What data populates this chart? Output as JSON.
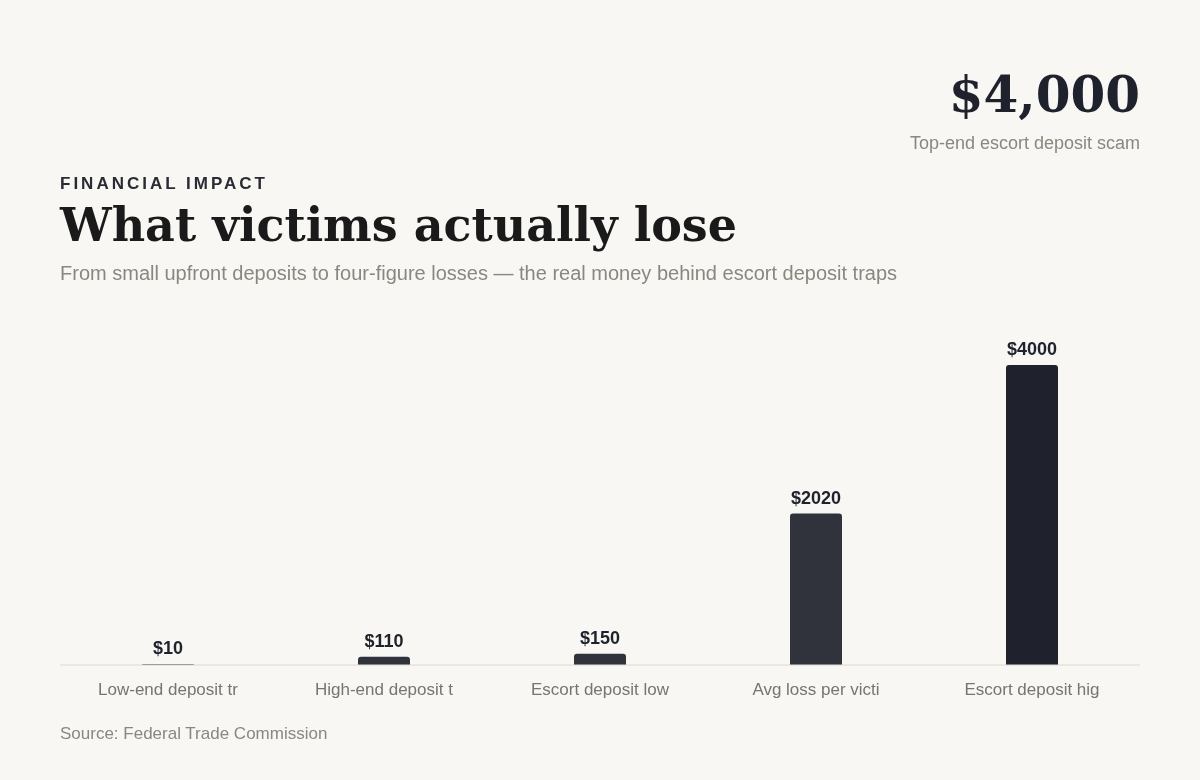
{
  "chart_data": {
    "type": "bar",
    "title": "What victims actually lose",
    "subtitle": "From small upfront deposits to four-figure losses — the real money behind escort deposit traps",
    "annotations": [
      "FINANCIAL IMPACT",
      "$4,000",
      "Top-end escort deposit scam",
      "Source: Federal Trade Commission"
    ],
    "categories": [
      "Low-end deposit tr",
      "High-end deposit t",
      "Escort deposit low",
      "Avg loss per victi",
      "Escort deposit hig"
    ],
    "values": [
      10,
      110,
      150,
      2020,
      4000
    ],
    "colors": [
      "#30333c",
      "#30333c",
      "#30333c",
      "#30333c",
      "#1f222c"
    ],
    "value_labels": [
      "$10",
      "$110",
      "$150",
      "$2020",
      "$4000"
    ]
  }
}
